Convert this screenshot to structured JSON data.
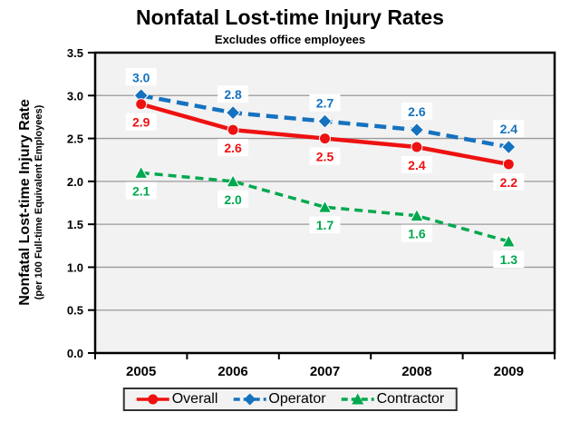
{
  "title": "Nonfatal Lost-time Injury Rates",
  "subtitle": "Excludes office employees",
  "y_axis": {
    "label_main": "Nonfatal Lost-time Injury Rate",
    "label_sub": "(per 100 Full-time Equivalent Employees)"
  },
  "chart_data": {
    "type": "line",
    "title": "Nonfatal Lost-time Injury Rates",
    "subtitle": "Excludes office employees",
    "ylabel": "Nonfatal Lost-time Injury Rate (per 100 Full-time Equivalent Employees)",
    "xlabel": "",
    "categories": [
      "2005",
      "2006",
      "2007",
      "2008",
      "2009"
    ],
    "series": [
      {
        "name": "Overall",
        "color": "#EE1111",
        "line_style": "solid",
        "marker": "circle",
        "label_position": "below",
        "values": [
          2.9,
          2.6,
          2.5,
          2.4,
          2.2
        ]
      },
      {
        "name": "Operator",
        "color": "#1572BF",
        "line_style": "dashed",
        "marker": "diamond",
        "label_position": "above",
        "values": [
          3.0,
          2.8,
          2.7,
          2.6,
          2.4
        ]
      },
      {
        "name": "Contractor",
        "color": "#00A84E",
        "line_style": "dashed",
        "marker": "triangle",
        "label_position": "below",
        "values": [
          2.1,
          2.0,
          1.7,
          1.6,
          1.3
        ]
      }
    ],
    "ylim": [
      0.0,
      3.5
    ],
    "ytick_step": 0.5,
    "ytick_labels": [
      "0.0",
      "0.5",
      "1.0",
      "1.5",
      "2.0",
      "2.5",
      "3.0",
      "3.5"
    ],
    "grid": "horizontal",
    "value_labels_shown": true,
    "legend_position": "bottom",
    "colors": {
      "plot_background": "#F2F2F2",
      "gridline": "#999999",
      "axis_border": "#000000",
      "label_box_background": "#FFFFFF"
    }
  }
}
